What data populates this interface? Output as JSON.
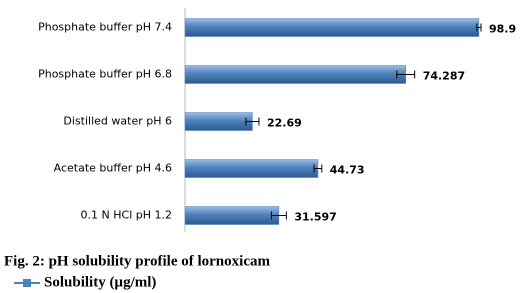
{
  "chart_data": {
    "type": "hbar",
    "caption": "Fig. 2: pH solubility profile of lornoxicam",
    "categories": [
      "Phosphate buffer pH 7.4",
      "Phosphate buffer pH 6.8",
      "Distilled water pH 6",
      "Acetate buffer pH 4.6",
      "0.1 N HCl pH 1.2"
    ],
    "series": [
      {
        "name": "Solubility (µg/ml)",
        "color": "#4f81bd",
        "values": [
          98.9,
          74.287,
          22.69,
          44.73,
          31.597
        ],
        "errors": [
          0.7,
          3,
          2.2,
          1.3,
          2.5
        ]
      }
    ]
  }
}
